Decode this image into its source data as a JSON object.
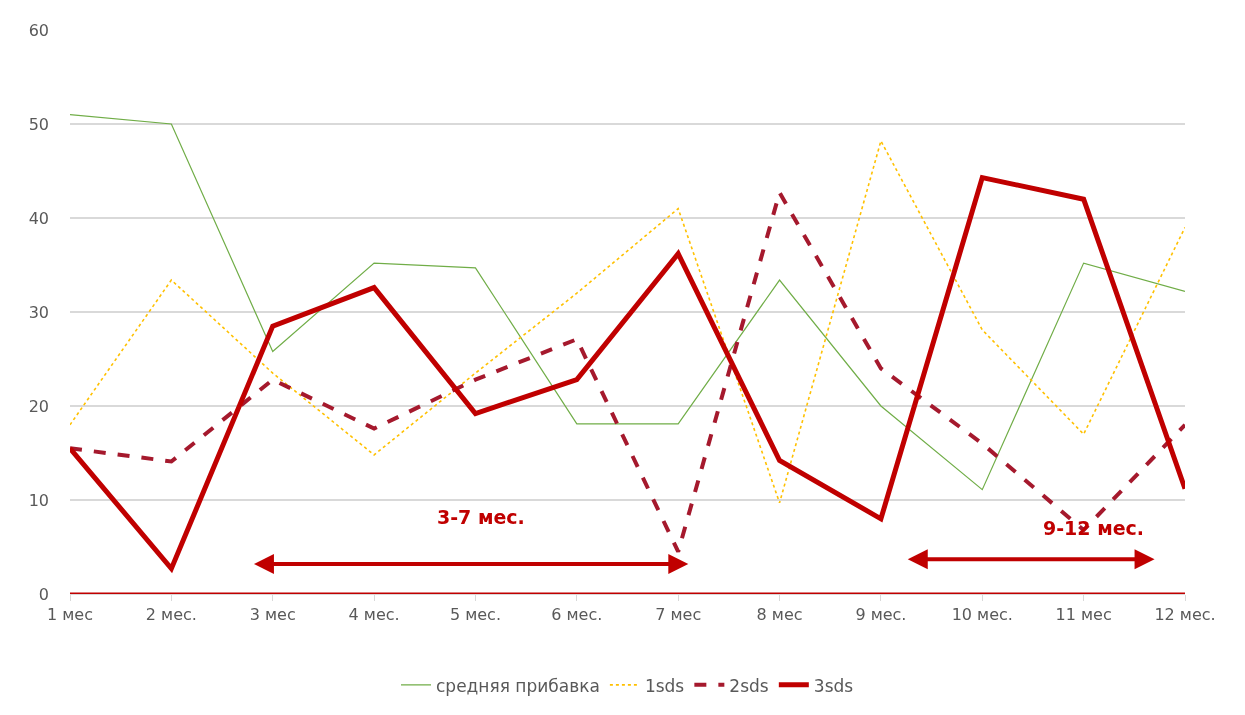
{
  "chart_data": {
    "type": "line",
    "categories": [
      "1 мес",
      "2 мес.",
      "3 мес",
      "4 мес.",
      "5 мес.",
      "6 мес.",
      "7 мес",
      "8 мес",
      "9 мес.",
      "10 мес.",
      "11 мес",
      "12 мес."
    ],
    "series": [
      {
        "name": "средняя прибавка",
        "color": "#70ad47",
        "line_style": "solid",
        "values": [
          51,
          50,
          25.8,
          35.2,
          34.7,
          18.1,
          18.1,
          33.4,
          20,
          11.1,
          35.2,
          32.2
        ]
      },
      {
        "name": "1sds",
        "color": "#ffc000",
        "line_style": "dotted",
        "values": [
          18,
          33.4,
          23.5,
          14.8,
          23.5,
          32,
          41,
          9.7,
          48.2,
          28.1,
          17,
          39
        ]
      },
      {
        "name": "2sds",
        "color": "#a5192d",
        "line_style": "dashed",
        "values": [
          15.5,
          14.1,
          22.8,
          17.6,
          22.8,
          27.1,
          4.5,
          42.7,
          24,
          16,
          6.8,
          18
        ]
      },
      {
        "name": "3sds",
        "color": "#c00000",
        "line_style": "solid",
        "values": [
          15.5,
          2.7,
          28.5,
          32.6,
          19.2,
          22.8,
          36.2,
          14.2,
          8,
          44.3,
          42,
          11.2
        ]
      }
    ],
    "ylim": [
      0,
      60
    ],
    "yticks": [
      0,
      10,
      20,
      30,
      40,
      50,
      60
    ],
    "grid": "y",
    "legend": "bottom",
    "marker": "none",
    "ref_lines": [
      {
        "axis": "y",
        "value": 0,
        "color": "#c00000"
      }
    ],
    "annotations": [
      "3-7 мес.",
      "9-12 мес."
    ]
  }
}
